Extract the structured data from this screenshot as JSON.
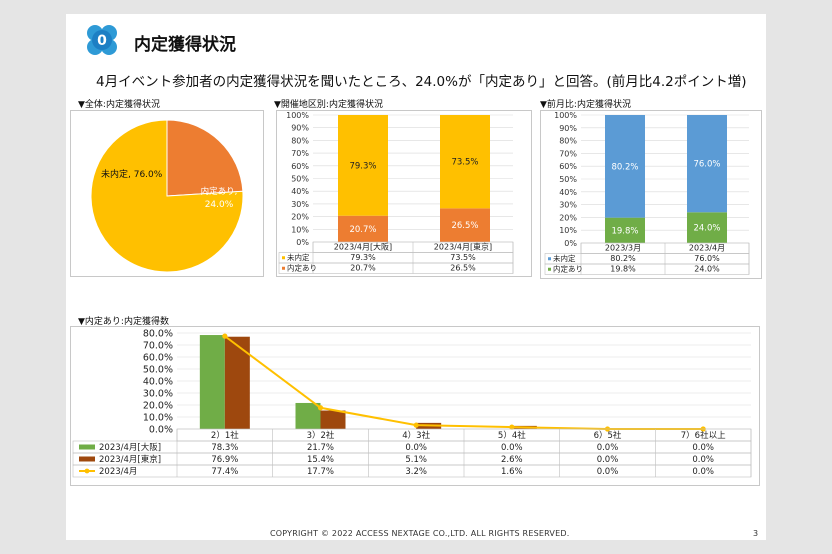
{
  "header": {
    "logo_text": "0",
    "title": "内定獲得状況",
    "subtitle": "4月イベント参加者の内定獲得状況を聞いたところ、24.0%が「内定あり」と回答。(前月比4.2ポイント増)"
  },
  "sections": {
    "overall": "▼全体:内定獲得状況",
    "region": "▼開催地区別:内定獲得状況",
    "month": "▼前月比:内定獲得状況",
    "count": "▼内定あり:内定獲得数"
  },
  "footer": {
    "copyright": "COPYRIGHT © 2022 ACCESS NEXTAGE CO.,LTD. ALL RIGHTS RESERVED.",
    "page": "3"
  },
  "colors": {
    "yellow": "#ffc000",
    "orange": "#ed7d31",
    "blue": "#5b9bd5",
    "green": "#70ad47",
    "brown": "#9e480e"
  },
  "chart_data": [
    {
      "type": "pie",
      "slices": [
        {
          "label": "未内定",
          "value": 76.0,
          "display": "未内定, 76.0%",
          "color": "#ffc000"
        },
        {
          "label": "内定あり",
          "value": 24.0,
          "display": "内定あり, 24.0%",
          "color": "#ed7d31"
        }
      ]
    },
    {
      "type": "bar",
      "stacked": true,
      "categories": [
        "2023/4月[大阪]",
        "2023/4月[東京]"
      ],
      "y_ticks": [
        "0%",
        "10%",
        "20%",
        "30%",
        "40%",
        "50%",
        "60%",
        "70%",
        "80%",
        "90%",
        "100%"
      ],
      "ylim": [
        0,
        100
      ],
      "series": [
        {
          "name": "未内定",
          "values": [
            79.3,
            73.5
          ],
          "labels": [
            "79.3%",
            "73.5%"
          ],
          "color": "#ffc000"
        },
        {
          "name": "内定あり",
          "values": [
            20.7,
            26.5
          ],
          "labels": [
            "20.7%",
            "26.5%"
          ],
          "color": "#ed7d31"
        }
      ]
    },
    {
      "type": "bar",
      "stacked": true,
      "categories": [
        "2023/3月",
        "2023/4月"
      ],
      "y_ticks": [
        "0%",
        "10%",
        "20%",
        "30%",
        "40%",
        "50%",
        "60%",
        "70%",
        "80%",
        "90%",
        "100%"
      ],
      "ylim": [
        0,
        100
      ],
      "series": [
        {
          "name": "未内定",
          "values": [
            80.2,
            76.0
          ],
          "labels": [
            "80.2%",
            "76.0%"
          ],
          "color": "#5b9bd5"
        },
        {
          "name": "内定あり",
          "values": [
            19.8,
            24.0
          ],
          "labels": [
            "19.8%",
            "24.0%"
          ],
          "color": "#70ad47"
        }
      ]
    },
    {
      "type": "bar",
      "categories": [
        "2）1社",
        "3）2社",
        "4）3社",
        "5）4社",
        "6）5社",
        "7）6社以上"
      ],
      "y_ticks": [
        "0.0%",
        "10.0%",
        "20.0%",
        "30.0%",
        "40.0%",
        "50.0%",
        "60.0%",
        "70.0%",
        "80.0%"
      ],
      "ylim": [
        0,
        80
      ],
      "series": [
        {
          "name": "2023/4月[大阪]",
          "kind": "bar",
          "values": [
            78.3,
            21.7,
            0.0,
            0.0,
            0.0,
            0.0
          ],
          "labels": [
            "78.3%",
            "21.7%",
            "0.0%",
            "0.0%",
            "0.0%",
            "0.0%"
          ],
          "color": "#70ad47"
        },
        {
          "name": "2023/4月[東京]",
          "kind": "bar",
          "values": [
            76.9,
            15.4,
            5.1,
            2.6,
            0.0,
            0.0
          ],
          "labels": [
            "76.9%",
            "15.4%",
            "5.1%",
            "2.6%",
            "0.0%",
            "0.0%"
          ],
          "color": "#9e480e"
        },
        {
          "name": "2023/4月",
          "kind": "line",
          "values": [
            77.4,
            17.7,
            3.2,
            1.6,
            0.0,
            0.0
          ],
          "labels": [
            "77.4%",
            "17.7%",
            "3.2%",
            "1.6%",
            "0.0%",
            "0.0%"
          ],
          "color": "#ffc000"
        }
      ]
    }
  ]
}
